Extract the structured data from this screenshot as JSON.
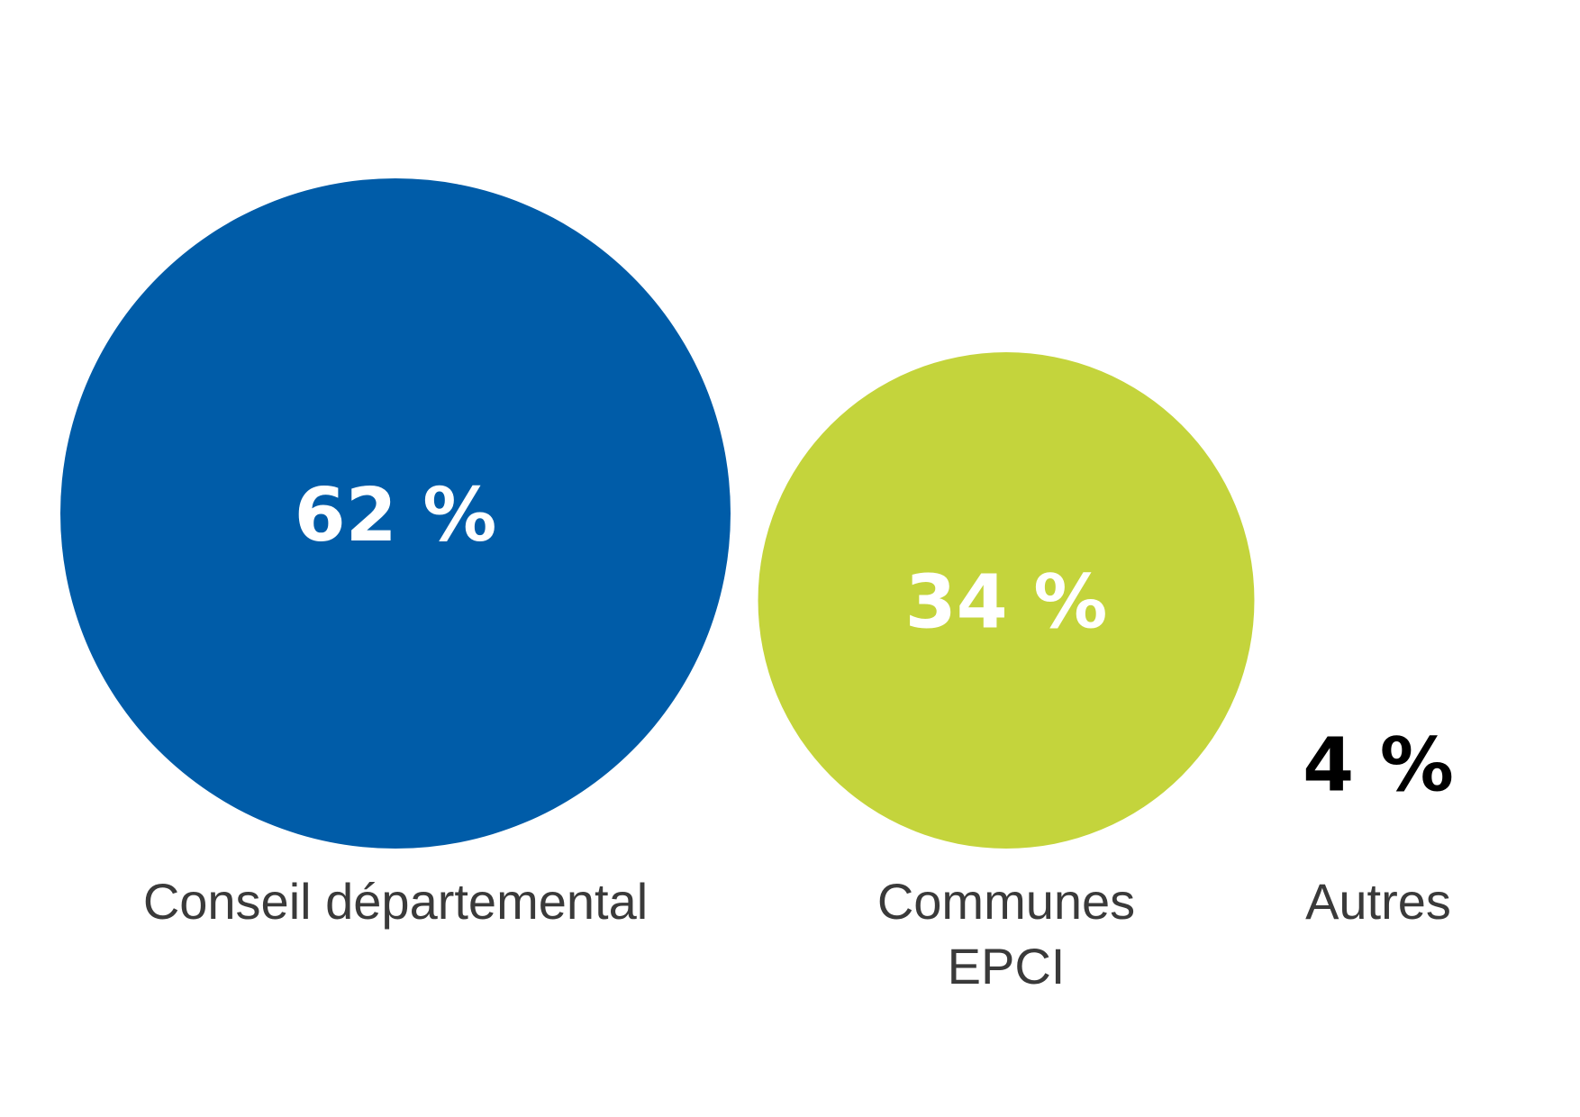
{
  "chart_data": {
    "type": "bubble",
    "categories": [
      [
        "Conseil départemental"
      ],
      [
        "Communes",
        "EPCI"
      ],
      [
        "Autres"
      ]
    ],
    "values": [
      62,
      34,
      4
    ],
    "value_labels": [
      "62 %",
      "34 %",
      "4 %"
    ],
    "colors": [
      "#005ca8",
      "#c4d43c",
      "#ffffff"
    ],
    "value_label_colors": [
      "#ffffff",
      "#ffffff",
      "#000000"
    ],
    "legend": "none",
    "grid": false
  }
}
